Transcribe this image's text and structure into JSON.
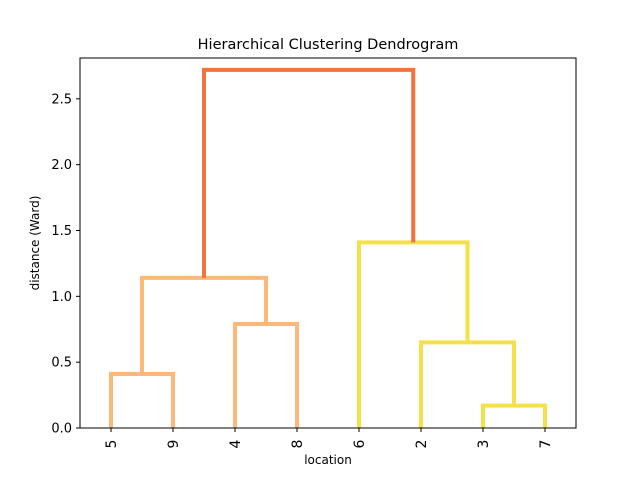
{
  "chart_data": {
    "type": "dendrogram",
    "title": "Hierarchical Clustering Dendrogram",
    "xlabel": "location",
    "ylabel": "distance (Ward)",
    "leaves": [
      "5",
      "9",
      "4",
      "8",
      "6",
      "2",
      "3",
      "7"
    ],
    "ylim": [
      0,
      2.81
    ],
    "yticks": [
      0.0,
      0.5,
      1.0,
      1.5,
      2.0,
      2.5
    ],
    "ytick_labels": [
      "0.0",
      "0.5",
      "1.0",
      "1.5",
      "2.0",
      "2.5"
    ],
    "grid": false,
    "merges": [
      {
        "id": "A",
        "left": "5",
        "right": "9",
        "height": 0.41,
        "color": "#fbb878"
      },
      {
        "id": "B",
        "left": "4",
        "right": "8",
        "height": 0.79,
        "color": "#fbb878"
      },
      {
        "id": "C",
        "left": "A",
        "right": "B",
        "height": 1.14,
        "color": "#fbb878"
      },
      {
        "id": "D",
        "left": "3",
        "right": "7",
        "height": 0.17,
        "color": "#f5e04a"
      },
      {
        "id": "E",
        "left": "2",
        "right": "D",
        "height": 0.65,
        "color": "#f5e04a"
      },
      {
        "id": "F",
        "left": "6",
        "right": "E",
        "height": 1.41,
        "color": "#f5e04a"
      },
      {
        "id": "G",
        "left": "C",
        "right": "F",
        "height": 2.72,
        "color": "#f27240"
      }
    ]
  }
}
